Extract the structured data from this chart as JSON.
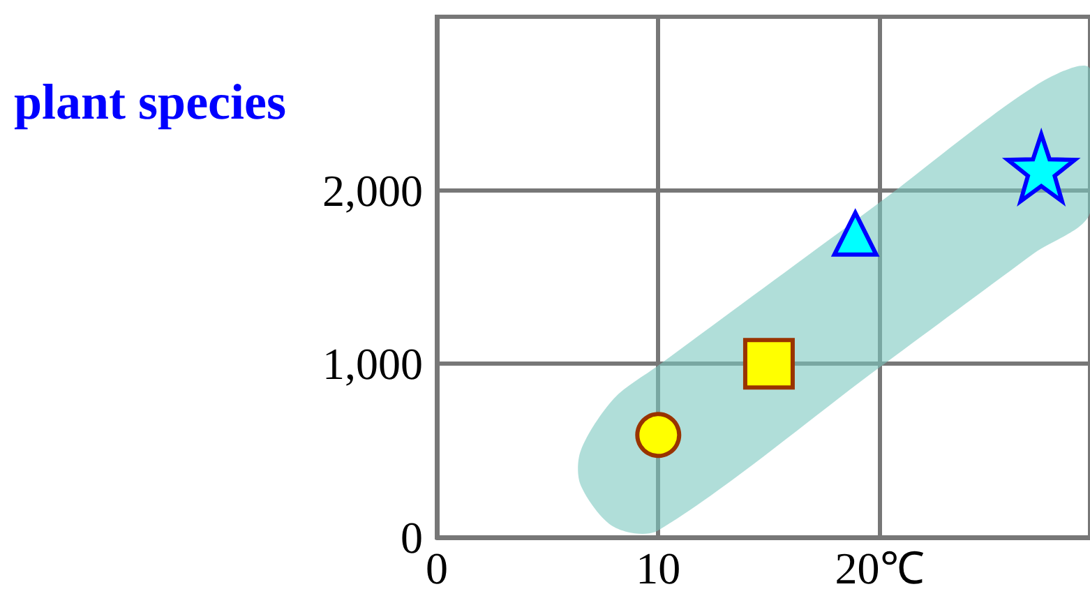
{
  "chart_data": {
    "type": "scatter",
    "ylabel": "plant species",
    "xlim": [
      0,
      29.5
    ],
    "xticks": [
      0,
      10,
      {
        "value": 20,
        "label": "20℃"
      }
    ],
    "ylim": [
      0,
      3000
    ],
    "yticks": [
      0,
      {
        "value": 1000,
        "label": "1,000"
      },
      {
        "value": 2000,
        "label": "2,000"
      }
    ],
    "grid": true,
    "series": [
      {
        "type": "area",
        "x": [
          6.5,
          8,
          10,
          20,
          27,
          29.5
        ],
        "values": [
          null,
          null,
          null,
          null,
          null,
          null
        ],
        "lower": [
          300,
          60,
          40,
          980,
          1640,
          1870
        ],
        "upper": [
          500,
          800,
          990,
          1930,
          2600,
          2700
        ],
        "color": "#7cc8c0"
      },
      {
        "x": [
          10
        ],
        "values": [
          590
        ],
        "color": "#ffff00",
        "marker": "circle"
      },
      {
        "x": [
          15
        ],
        "values": [
          1000
        ],
        "color": "#ffff00",
        "marker": "square"
      },
      {
        "x": [
          18.9
        ],
        "values": [
          1750
        ],
        "color": "#00ffff",
        "marker": "triangle"
      },
      {
        "x": [
          27.3
        ],
        "values": [
          2130
        ],
        "color": "#00ffff",
        "marker": "star"
      }
    ]
  }
}
